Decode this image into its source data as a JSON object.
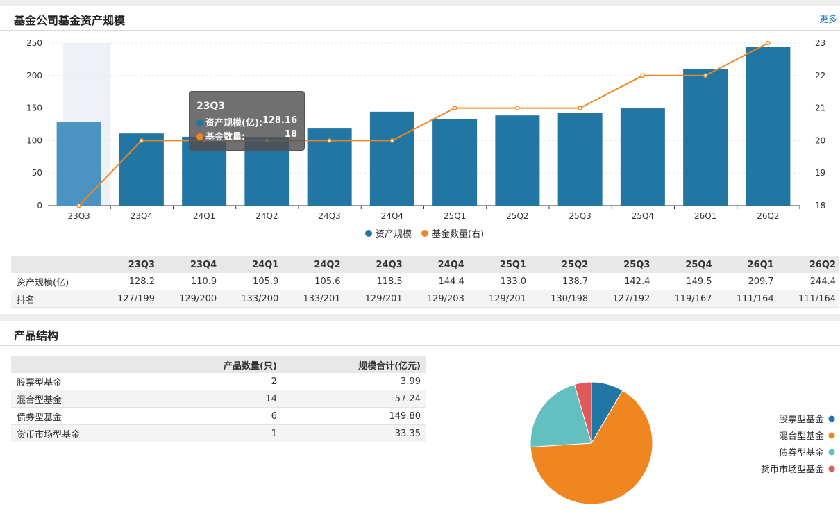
{
  "panel1": {
    "title": "基金公司基金资产规模",
    "more_label": "更多"
  },
  "chart_data": {
    "type": "bar",
    "categories": [
      "23Q3",
      "23Q4",
      "24Q1",
      "24Q2",
      "24Q3",
      "24Q4",
      "25Q1",
      "25Q2",
      "25Q3",
      "25Q4",
      "26Q1",
      "26Q2"
    ],
    "series": [
      {
        "name": "资产规模",
        "type": "bar",
        "axis": "left",
        "color": "#2276a3",
        "values": [
          128.16,
          110.9,
          105.9,
          105.6,
          118.5,
          144.4,
          133.0,
          138.7,
          142.4,
          149.5,
          209.7,
          244.4
        ]
      },
      {
        "name": "基金数量(右)",
        "type": "line",
        "axis": "right",
        "color": "#f0861f",
        "values": [
          18,
          20,
          20,
          20,
          20,
          20,
          21,
          21,
          21,
          22,
          22,
          23
        ]
      }
    ],
    "ylim_left": [
      0,
      250
    ],
    "yticks_left": [
      0,
      50,
      100,
      150,
      200,
      250
    ],
    "ylim_right": [
      18,
      23
    ],
    "yticks_right": [
      18,
      19,
      20,
      21,
      22,
      23
    ],
    "highlight_category": "23Q3",
    "legend_position": "bottom-center"
  },
  "tooltip": {
    "title": "23Q3",
    "rows": [
      {
        "label": "资产规模(亿):",
        "value": "128.16",
        "color": "#2276a3"
      },
      {
        "label": "基金数量:",
        "value": "18",
        "color": "#f0861f"
      }
    ]
  },
  "quarter_table": {
    "headers": [
      "23Q3",
      "23Q4",
      "24Q1",
      "24Q2",
      "24Q3",
      "24Q4",
      "25Q1",
      "25Q2",
      "25Q3",
      "25Q4",
      "26Q1",
      "26Q2"
    ],
    "rows": [
      {
        "label": "资产规模(亿)",
        "values": [
          "128.2",
          "110.9",
          "105.9",
          "105.6",
          "118.5",
          "144.4",
          "133.0",
          "138.7",
          "142.4",
          "149.5",
          "209.7",
          "244.4"
        ]
      },
      {
        "label": "排名",
        "values": [
          "127/199",
          "129/200",
          "133/200",
          "133/201",
          "129/201",
          "129/203",
          "129/201",
          "130/198",
          "127/192",
          "119/167",
          "111/164",
          "111/164"
        ]
      }
    ]
  },
  "panel2": {
    "title": "产品结构"
  },
  "product_table": {
    "headers": [
      "",
      "产品数量(只)",
      "规模合计(亿元)"
    ],
    "rows": [
      {
        "name": "股票型基金",
        "count": "2",
        "scale": "3.99"
      },
      {
        "name": "混合型基金",
        "count": "14",
        "scale": "57.24"
      },
      {
        "name": "债券型基金",
        "count": "6",
        "scale": "149.80"
      },
      {
        "name": "货币市场型基金",
        "count": "1",
        "scale": "33.35"
      }
    ]
  },
  "pie_data": {
    "type": "pie",
    "slices": [
      {
        "name": "股票型基金",
        "value": 8.5,
        "color": "#2276a3"
      },
      {
        "name": "混合型基金",
        "value": 65.5,
        "color": "#f0861f"
      },
      {
        "name": "债券型基金",
        "value": 21.5,
        "color": "#63bfc0"
      },
      {
        "name": "货币市场型基金",
        "value": 4.5,
        "color": "#e0595b"
      }
    ],
    "legend_position": "right"
  }
}
